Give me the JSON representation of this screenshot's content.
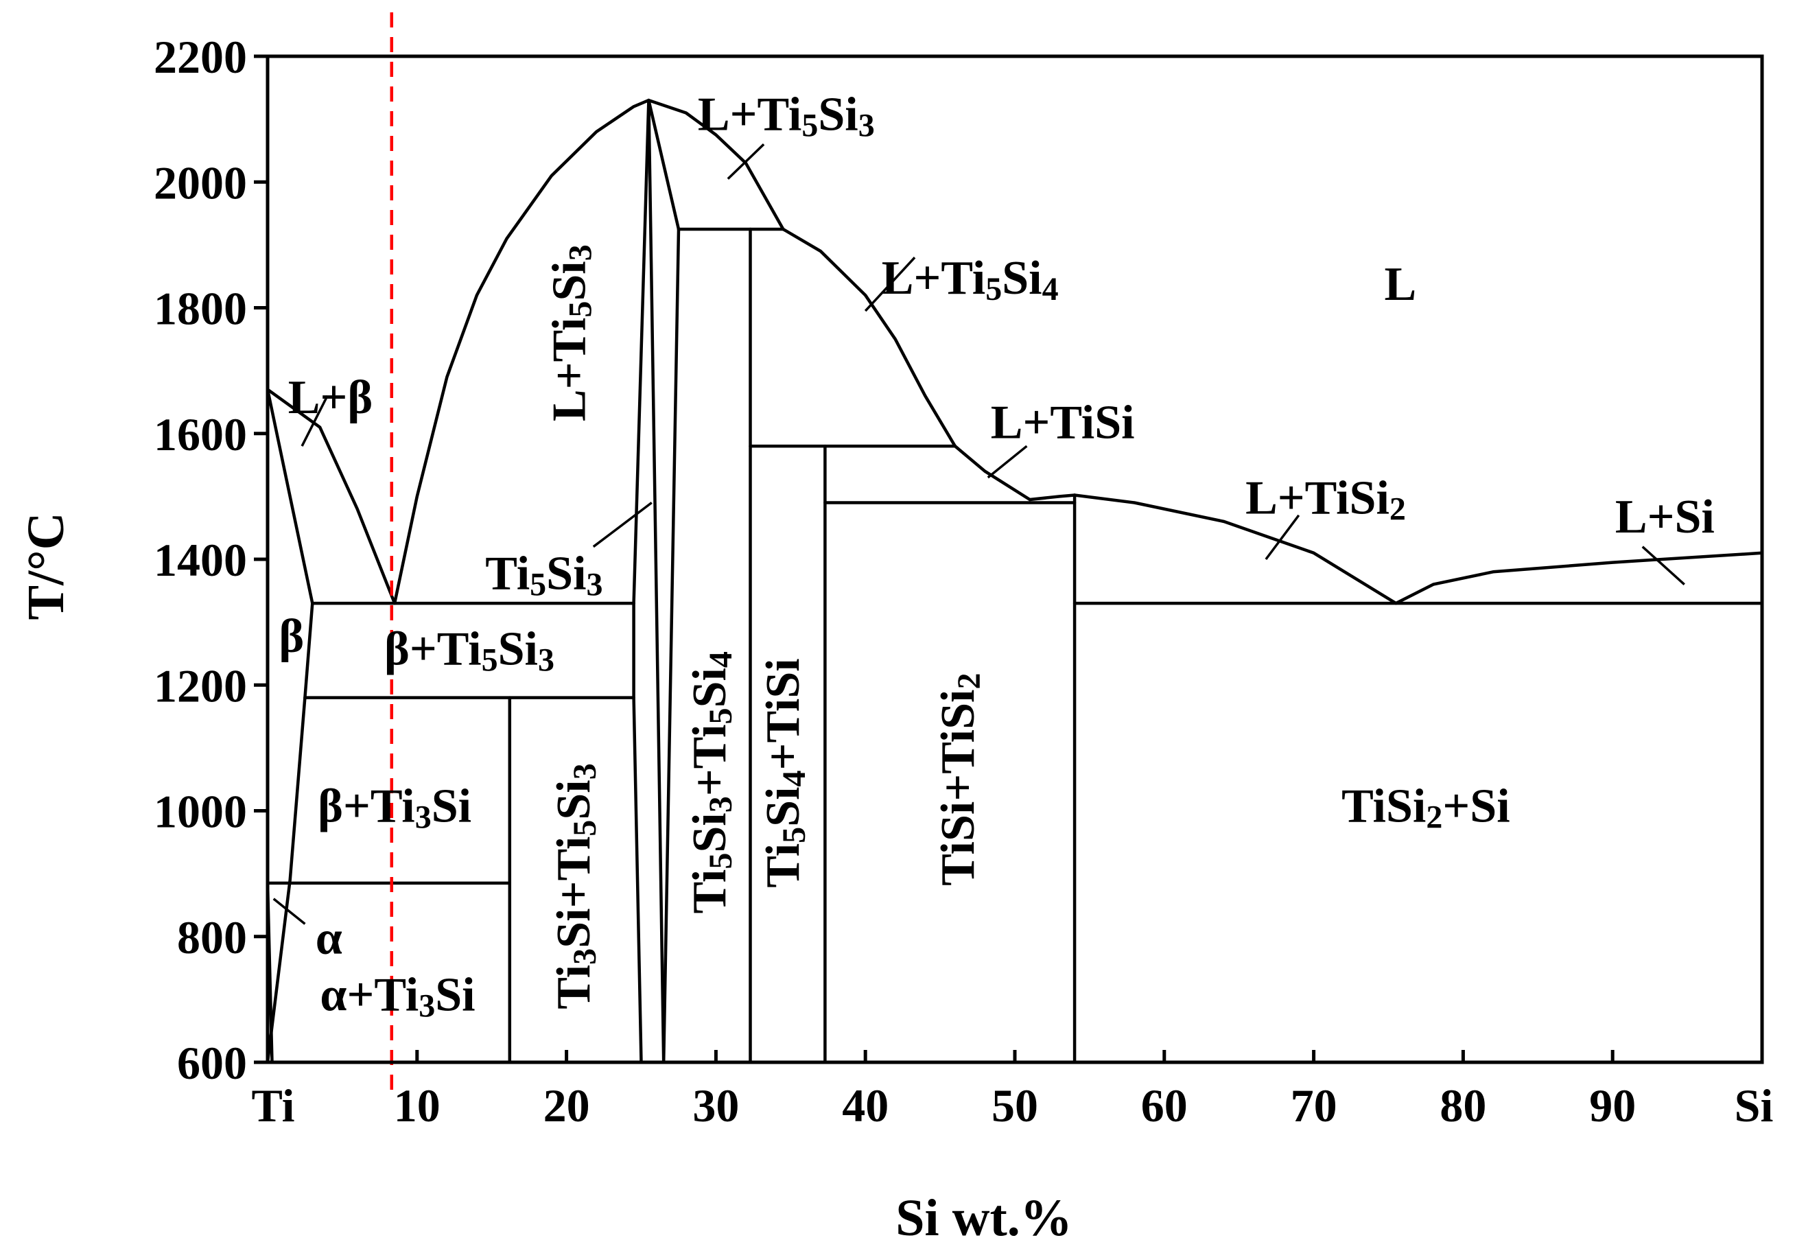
{
  "chart_data": {
    "type": "phase-diagram",
    "title": "",
    "xlabel": "Si wt.%",
    "ylabel": "T/°C",
    "xlim": [
      0,
      100
    ],
    "ylim": [
      600,
      2200
    ],
    "x_ticks": [
      {
        "value": 0,
        "label": "Ti"
      },
      {
        "value": 10,
        "label": "10"
      },
      {
        "value": 20,
        "label": "20"
      },
      {
        "value": 30,
        "label": "30"
      },
      {
        "value": 40,
        "label": "40"
      },
      {
        "value": 50,
        "label": "50"
      },
      {
        "value": 60,
        "label": "60"
      },
      {
        "value": 70,
        "label": "70"
      },
      {
        "value": 80,
        "label": "80"
      },
      {
        "value": 90,
        "label": "90"
      },
      {
        "value": 100,
        "label": "Si"
      }
    ],
    "y_ticks": [
      600,
      800,
      1000,
      1200,
      1400,
      1600,
      1800,
      2000,
      2200
    ],
    "reference_line": {
      "x": 8.3,
      "color": "#ff0000",
      "style": "dashed"
    },
    "boundaries": [
      {
        "name": "liquidus-ti-to-eutectic-1",
        "points": [
          [
            0,
            1670
          ],
          [
            3.5,
            1610
          ],
          [
            6,
            1480
          ],
          [
            8.5,
            1330
          ]
        ]
      },
      {
        "name": "liquidus-eutectic-1-to-ti5si3",
        "points": [
          [
            8.5,
            1330
          ],
          [
            10,
            1500
          ],
          [
            12,
            1690
          ],
          [
            14,
            1820
          ],
          [
            16,
            1910
          ],
          [
            19,
            2010
          ],
          [
            22,
            2080
          ],
          [
            24.5,
            2120
          ],
          [
            25.5,
            2130
          ]
        ]
      },
      {
        "name": "liquidus-ti5si3-to-peritectic-ti5si4",
        "points": [
          [
            25.5,
            2130
          ],
          [
            28,
            2110
          ],
          [
            30,
            2075
          ],
          [
            32,
            2030
          ],
          [
            34.5,
            1925
          ]
        ]
      },
      {
        "name": "liquidus-ti5si4-to-peritectic-tisi",
        "points": [
          [
            34.5,
            1925
          ],
          [
            37,
            1890
          ],
          [
            40,
            1820
          ],
          [
            42,
            1750
          ],
          [
            44,
            1660
          ],
          [
            46,
            1580
          ]
        ]
      },
      {
        "name": "liquidus-tisi-to-eutectic-2",
        "points": [
          [
            46,
            1580
          ],
          [
            48,
            1540
          ],
          [
            51,
            1495
          ]
        ]
      },
      {
        "name": "liquidus-tisi2-left",
        "points": [
          [
            51,
            1495
          ],
          [
            53,
            1500
          ],
          [
            54,
            1502
          ]
        ]
      },
      {
        "name": "liquidus-tisi2-to-eutectic-3",
        "points": [
          [
            54,
            1502
          ],
          [
            58,
            1490
          ],
          [
            64,
            1460
          ],
          [
            70,
            1410
          ],
          [
            75.5,
            1330
          ]
        ]
      },
      {
        "name": "liquidus-si",
        "points": [
          [
            75.5,
            1330
          ],
          [
            78,
            1360
          ],
          [
            82,
            1380
          ],
          [
            90,
            1395
          ],
          [
            100,
            1410
          ]
        ]
      },
      {
        "name": "beta-solvus-left",
        "points": [
          [
            0,
            1670
          ],
          [
            3,
            1330
          ]
        ]
      },
      {
        "name": "beta-solvus-lower",
        "points": [
          [
            3,
            1330
          ],
          [
            2.5,
            1180
          ],
          [
            1.5,
            890
          ],
          [
            0,
            600
          ]
        ]
      },
      {
        "name": "alpha-beta-transus",
        "points": [
          [
            0,
            885
          ],
          [
            1.5,
            885
          ]
        ]
      },
      {
        "name": "alpha-solvus",
        "points": [
          [
            0,
            885
          ],
          [
            0.3,
            600
          ]
        ]
      },
      {
        "name": "eutectic-ti5si3-isotherm",
        "points": [
          [
            3,
            1330
          ],
          [
            24.5,
            1330
          ]
        ]
      },
      {
        "name": "eutectoid-ti3si-isotherm",
        "points": [
          [
            2.5,
            1180
          ],
          [
            24.5,
            1180
          ]
        ]
      },
      {
        "name": "alpha-ti3si-isotherm",
        "points": [
          [
            1.5,
            885
          ],
          [
            16.2,
            885
          ]
        ]
      },
      {
        "name": "ti3si-line",
        "points": [
          [
            16.2,
            1180
          ],
          [
            16.2,
            600
          ]
        ]
      },
      {
        "name": "ti5si3-left-boundary",
        "points": [
          [
            24.5,
            1330
          ],
          [
            24.5,
            1180
          ],
          [
            25,
            600
          ]
        ]
      },
      {
        "name": "ti5si3-left-to-apex",
        "points": [
          [
            24.5,
            1330
          ],
          [
            25.5,
            2130
          ]
        ]
      },
      {
        "name": "ti5si3-right-boundary",
        "points": [
          [
            25.5,
            2130
          ],
          [
            26.5,
            600
          ]
        ]
      },
      {
        "name": "ti5si3-right-to-peritectic",
        "points": [
          [
            25.5,
            2130
          ],
          [
            27.5,
            1925
          ]
        ]
      },
      {
        "name": "ti5si4-peritectic-isotherm",
        "points": [
          [
            27.5,
            1925
          ],
          [
            34.5,
            1925
          ]
        ]
      },
      {
        "name": "ti5si3-ti5si4-left-line",
        "points": [
          [
            27.5,
            1925
          ],
          [
            26.5,
            600
          ]
        ]
      },
      {
        "name": "ti5si4-line",
        "points": [
          [
            32.3,
            1925
          ],
          [
            32.3,
            600
          ]
        ]
      },
      {
        "name": "tisi-peritectic-isotherm",
        "points": [
          [
            32.3,
            1580
          ],
          [
            46,
            1580
          ]
        ]
      },
      {
        "name": "tisi-line",
        "points": [
          [
            37.3,
            1580
          ],
          [
            37.3,
            600
          ]
        ]
      },
      {
        "name": "tisi-tisi2-eutectic-isotherm",
        "points": [
          [
            37.3,
            1490
          ],
          [
            54,
            1490
          ]
        ]
      },
      {
        "name": "tisi2-line",
        "points": [
          [
            54,
            1502
          ],
          [
            54,
            600
          ]
        ]
      },
      {
        "name": "tisi2-si-eutectic-isotherm",
        "points": [
          [
            54,
            1330
          ],
          [
            100,
            1330
          ]
        ]
      }
    ],
    "regions": [
      {
        "name": "L+β",
        "parts": [
          {
            "t": "L+β"
          }
        ],
        "x": 4.2,
        "y": 1650,
        "rotate": 0,
        "leader": [
          [
            2.3,
            1580
          ],
          [
            4.0,
            1660
          ]
        ]
      },
      {
        "name": "β",
        "parts": [
          {
            "t": "β"
          }
        ],
        "x": 1.6,
        "y": 1270,
        "rotate": 0
      },
      {
        "name": "β+Ti5Si3",
        "parts": [
          {
            "t": "β+Ti"
          },
          {
            "t": "5",
            "sub": true
          },
          {
            "t": "Si"
          },
          {
            "t": "3",
            "sub": true
          }
        ],
        "x": 13.5,
        "y": 1250,
        "rotate": 0
      },
      {
        "name": "β+Ti3Si",
        "parts": [
          {
            "t": "β+Ti"
          },
          {
            "t": "3",
            "sub": true
          },
          {
            "t": "Si"
          }
        ],
        "x": 8.5,
        "y": 1000,
        "rotate": 0
      },
      {
        "name": "α",
        "parts": [
          {
            "t": "α"
          }
        ],
        "x": 4.1,
        "y": 790,
        "rotate": 0,
        "leader": [
          [
            0.4,
            860
          ],
          [
            2.5,
            820
          ]
        ]
      },
      {
        "name": "α+Ti3Si",
        "parts": [
          {
            "t": "α+Ti"
          },
          {
            "t": "3",
            "sub": true
          },
          {
            "t": "Si"
          }
        ],
        "x": 8.7,
        "y": 700,
        "rotate": 0
      },
      {
        "name": "L+Ti5Si3 (left)",
        "parts": [
          {
            "t": "L+Ti"
          },
          {
            "t": "5",
            "sub": true
          },
          {
            "t": "Si"
          },
          {
            "t": "3",
            "sub": true
          }
        ],
        "x": 20.5,
        "y": 1760,
        "rotate": -90
      },
      {
        "name": "Ti5Si3",
        "parts": [
          {
            "t": "Ti"
          },
          {
            "t": "5",
            "sub": true
          },
          {
            "t": "Si"
          },
          {
            "t": "3",
            "sub": true
          }
        ],
        "x": 18.5,
        "y": 1370,
        "rotate": 0,
        "leader": [
          [
            21.8,
            1420
          ],
          [
            25.7,
            1490
          ]
        ]
      },
      {
        "name": "Ti3Si+Ti5Si3",
        "parts": [
          {
            "t": "Ti"
          },
          {
            "t": "3",
            "sub": true
          },
          {
            "t": "Si+Ti"
          },
          {
            "t": "5",
            "sub": true
          },
          {
            "t": "Si"
          },
          {
            "t": "3",
            "sub": true
          }
        ],
        "x": 20.8,
        "y": 880,
        "rotate": -90
      },
      {
        "name": "L+Ti5Si3 (top)",
        "parts": [
          {
            "t": "L+Ti"
          },
          {
            "t": "5",
            "sub": true
          },
          {
            "t": "Si"
          },
          {
            "t": "3",
            "sub": true
          }
        ],
        "x": 34.7,
        "y": 2100,
        "rotate": 0,
        "leader": [
          [
            30.8,
            2005
          ],
          [
            33.2,
            2060
          ]
        ]
      },
      {
        "name": "Ti5Si3+Ti5Si4",
        "parts": [
          {
            "t": "Ti"
          },
          {
            "t": "5",
            "sub": true
          },
          {
            "t": "Si"
          },
          {
            "t": "3",
            "sub": true
          },
          {
            "t": "+Ti"
          },
          {
            "t": "5",
            "sub": true
          },
          {
            "t": "Si"
          },
          {
            "t": "4",
            "sub": true
          }
        ],
        "x": 29.9,
        "y": 1045,
        "rotate": -90
      },
      {
        "name": "L+Ti5Si4",
        "parts": [
          {
            "t": "L+Ti"
          },
          {
            "t": "5",
            "sub": true
          },
          {
            "t": "Si"
          },
          {
            "t": "4",
            "sub": true
          }
        ],
        "x": 47,
        "y": 1840,
        "rotate": 0,
        "leader": [
          [
            40,
            1795
          ],
          [
            43.3,
            1880
          ]
        ]
      },
      {
        "name": "Ti5Si4+TiSi",
        "parts": [
          {
            "t": "Ti"
          },
          {
            "t": "5",
            "sub": true
          },
          {
            "t": "Si"
          },
          {
            "t": "4",
            "sub": true
          },
          {
            "t": "+TiSi"
          }
        ],
        "x": 34.8,
        "y": 1060,
        "rotate": -90
      },
      {
        "name": "L+TiSi",
        "parts": [
          {
            "t": "L+TiSi"
          }
        ],
        "x": 53.2,
        "y": 1610,
        "rotate": 0,
        "leader": [
          [
            48.2,
            1530
          ],
          [
            50.8,
            1580
          ]
        ]
      },
      {
        "name": "TiSi+TiSi2",
        "parts": [
          {
            "t": "TiSi+TiSi"
          },
          {
            "t": "2",
            "sub": true
          }
        ],
        "x": 46.5,
        "y": 1050,
        "rotate": -90
      },
      {
        "name": "L",
        "parts": [
          {
            "t": "L"
          }
        ],
        "x": 75.8,
        "y": 1830,
        "rotate": 0
      },
      {
        "name": "L+TiSi2",
        "parts": [
          {
            "t": "L+TiSi"
          },
          {
            "t": "2",
            "sub": true
          }
        ],
        "x": 70.8,
        "y": 1490,
        "rotate": 0,
        "leader": [
          [
            66.8,
            1400
          ],
          [
            69,
            1470
          ]
        ]
      },
      {
        "name": "L+Si",
        "parts": [
          {
            "t": "L+Si"
          }
        ],
        "x": 93.5,
        "y": 1460,
        "rotate": 0,
        "leader": [
          [
            92,
            1420
          ],
          [
            94.8,
            1360
          ]
        ]
      },
      {
        "name": "TiSi2+Si",
        "parts": [
          {
            "t": "TiSi"
          },
          {
            "t": "2",
            "sub": true
          },
          {
            "t": "+Si"
          }
        ],
        "x": 77.5,
        "y": 1000,
        "rotate": 0
      }
    ]
  }
}
